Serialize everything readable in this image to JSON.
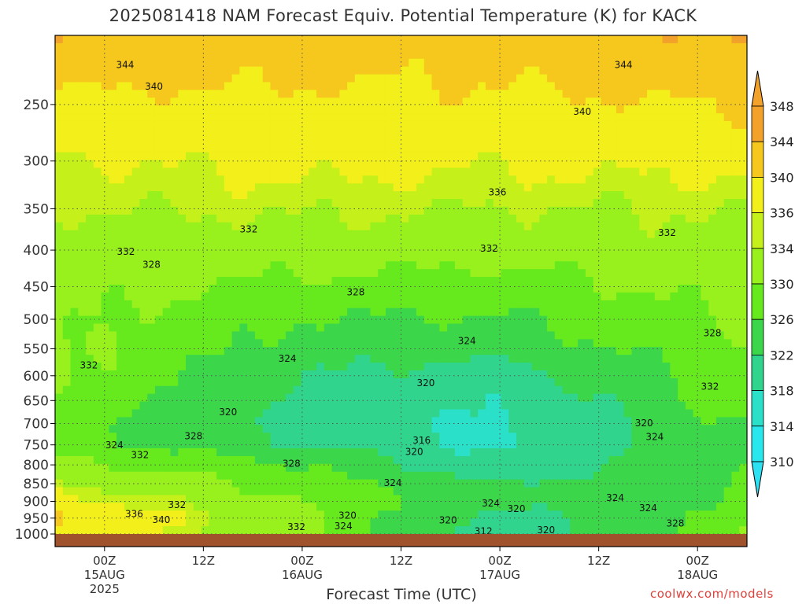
{
  "chart_data": {
    "type": "heatmap",
    "title": "2025081418 NAM Forecast Equiv. Potential Temperature (K) for KACK",
    "xlabel": "Forecast Time (UTC)",
    "ylabel": "",
    "x_range_hours": [
      -6,
      78
    ],
    "y_axis": {
      "scale": "log-pressure",
      "range": [
        1000,
        200
      ],
      "reversed": true
    },
    "x_ticks": [
      {
        "hour": 0,
        "line1": "00Z",
        "line2": "15AUG",
        "line3": "2025"
      },
      {
        "hour": 12,
        "line1": "12Z",
        "line2": "",
        "line3": ""
      },
      {
        "hour": 24,
        "line1": "00Z",
        "line2": "16AUG",
        "line3": ""
      },
      {
        "hour": 36,
        "line1": "12Z",
        "line2": "",
        "line3": ""
      },
      {
        "hour": 48,
        "line1": "00Z",
        "line2": "17AUG",
        "line3": ""
      },
      {
        "hour": 60,
        "line1": "12Z",
        "line2": "",
        "line3": ""
      },
      {
        "hour": 72,
        "line1": "00Z",
        "line2": "18AUG",
        "line3": ""
      }
    ],
    "y_ticks": [
      250,
      300,
      350,
      400,
      450,
      500,
      550,
      600,
      650,
      700,
      750,
      800,
      850,
      900,
      950,
      1000
    ],
    "colorbar": {
      "levels": [
        348,
        344,
        340,
        336,
        334,
        330,
        326,
        322,
        318,
        314,
        310
      ],
      "colors": [
        "#f2a22a",
        "#f6c81e",
        "#f3ef1a",
        "#c6f01a",
        "#98f01c",
        "#66ea1e",
        "#3cd64a",
        "#30d48c",
        "#2ae0c8",
        "#28e8ee"
      ],
      "extend_colors": {
        "max": "#f2a22a",
        "min": "#2ce2f2"
      }
    },
    "series": [
      {
        "name": "profile_00Z15AUG",
        "values": [
          [
            200,
            343.5
          ],
          [
            250,
            339
          ],
          [
            300,
            336
          ],
          [
            350,
            334
          ],
          [
            400,
            332
          ],
          [
            450,
            331
          ],
          [
            500,
            330
          ],
          [
            550,
            330
          ],
          [
            600,
            329
          ],
          [
            650,
            328
          ],
          [
            700,
            326
          ],
          [
            750,
            327
          ],
          [
            800,
            330
          ],
          [
            850,
            333
          ],
          [
            900,
            336
          ],
          [
            950,
            339
          ],
          [
            1000,
            337
          ]
        ]
      },
      {
        "name": "profile_00Z16AUG",
        "values": [
          [
            200,
            342
          ],
          [
            250,
            339
          ],
          [
            300,
            337
          ],
          [
            350,
            334.5
          ],
          [
            400,
            332
          ],
          [
            450,
            329
          ],
          [
            500,
            326
          ],
          [
            550,
            324
          ],
          [
            600,
            322
          ],
          [
            650,
            321
          ],
          [
            700,
            320
          ],
          [
            750,
            322
          ],
          [
            800,
            326
          ],
          [
            850,
            328.5
          ],
          [
            900,
            330
          ],
          [
            950,
            331
          ],
          [
            1000,
            331
          ]
        ]
      },
      {
        "name": "profile_00Z17AUG",
        "values": [
          [
            200,
            342
          ],
          [
            250,
            339
          ],
          [
            300,
            336.5
          ],
          [
            350,
            334
          ],
          [
            400,
            331.5
          ],
          [
            450,
            328
          ],
          [
            500,
            325.5
          ],
          [
            550,
            323
          ],
          [
            600,
            320
          ],
          [
            650,
            318.5
          ],
          [
            700,
            317.5
          ],
          [
            750,
            317
          ],
          [
            800,
            318
          ],
          [
            850,
            322
          ],
          [
            900,
            323
          ],
          [
            950,
            320
          ],
          [
            1000,
            318
          ]
        ]
      },
      {
        "name": "profile_00Z18AUG",
        "values": [
          [
            200,
            344
          ],
          [
            250,
            340
          ],
          [
            300,
            337
          ],
          [
            350,
            334
          ],
          [
            400,
            332.5
          ],
          [
            450,
            331
          ],
          [
            500,
            329.5
          ],
          [
            550,
            328
          ],
          [
            600,
            327
          ],
          [
            650,
            326
          ],
          [
            700,
            325
          ],
          [
            750,
            324.5
          ],
          [
            800,
            325
          ],
          [
            850,
            325.5
          ],
          [
            900,
            326
          ],
          [
            950,
            327
          ],
          [
            1000,
            328
          ]
        ]
      }
    ],
    "contour_labels": [
      {
        "hour": 2.5,
        "p": 220,
        "text": "344"
      },
      {
        "hour": 63,
        "p": 220,
        "text": "344"
      },
      {
        "hour": 6,
        "p": 236,
        "text": "340"
      },
      {
        "hour": 58,
        "p": 256,
        "text": "340"
      },
      {
        "hour": 47.7,
        "p": 332,
        "text": "336"
      },
      {
        "hour": 17.5,
        "p": 374,
        "text": "332"
      },
      {
        "hour": 46.7,
        "p": 398,
        "text": "332"
      },
      {
        "hour": 68.3,
        "p": 378,
        "text": "332"
      },
      {
        "hour": 2.6,
        "p": 402,
        "text": "332"
      },
      {
        "hour": 5.7,
        "p": 419,
        "text": "328"
      },
      {
        "hour": 30.5,
        "p": 458,
        "text": "328"
      },
      {
        "hour": 44,
        "p": 536,
        "text": "324"
      },
      {
        "hour": 22.2,
        "p": 568,
        "text": "324"
      },
      {
        "hour": -1.9,
        "p": 580,
        "text": "332"
      },
      {
        "hour": 39,
        "p": 614,
        "text": "320"
      },
      {
        "hour": 15,
        "p": 675,
        "text": "320"
      },
      {
        "hour": 65.5,
        "p": 699,
        "text": "320"
      },
      {
        "hour": 38.5,
        "p": 739,
        "text": "316"
      },
      {
        "hour": 37.6,
        "p": 767,
        "text": "320"
      },
      {
        "hour": 10.8,
        "p": 729,
        "text": "328"
      },
      {
        "hour": 1.2,
        "p": 751,
        "text": "324"
      },
      {
        "hour": 4.3,
        "p": 775,
        "text": "332"
      },
      {
        "hour": 22.7,
        "p": 797,
        "text": "328"
      },
      {
        "hour": 35,
        "p": 848,
        "text": "324"
      },
      {
        "hour": 66.8,
        "p": 731,
        "text": "324"
      },
      {
        "hour": 73.8,
        "p": 523,
        "text": "328"
      },
      {
        "hour": 73.5,
        "p": 621,
        "text": "332"
      },
      {
        "hour": 46.9,
        "p": 906,
        "text": "324"
      },
      {
        "hour": 8.8,
        "p": 910,
        "text": "332"
      },
      {
        "hour": 3.6,
        "p": 937,
        "text": "336"
      },
      {
        "hour": 6.9,
        "p": 955,
        "text": "340"
      },
      {
        "hour": 50,
        "p": 922,
        "text": "320"
      },
      {
        "hour": 29.5,
        "p": 942,
        "text": "320"
      },
      {
        "hour": 41.7,
        "p": 957,
        "text": "320"
      },
      {
        "hour": 62,
        "p": 890,
        "text": "324"
      },
      {
        "hour": 66,
        "p": 920,
        "text": "324"
      },
      {
        "hour": 29,
        "p": 975,
        "text": "324"
      },
      {
        "hour": 23.3,
        "p": 978,
        "text": "332"
      },
      {
        "hour": 46,
        "p": 991,
        "text": "312"
      },
      {
        "hour": 53.6,
        "p": 988,
        "text": "320"
      },
      {
        "hour": 69.3,
        "p": 966,
        "text": "328"
      }
    ]
  },
  "footer": {
    "credit": "coolwx.com/models"
  }
}
